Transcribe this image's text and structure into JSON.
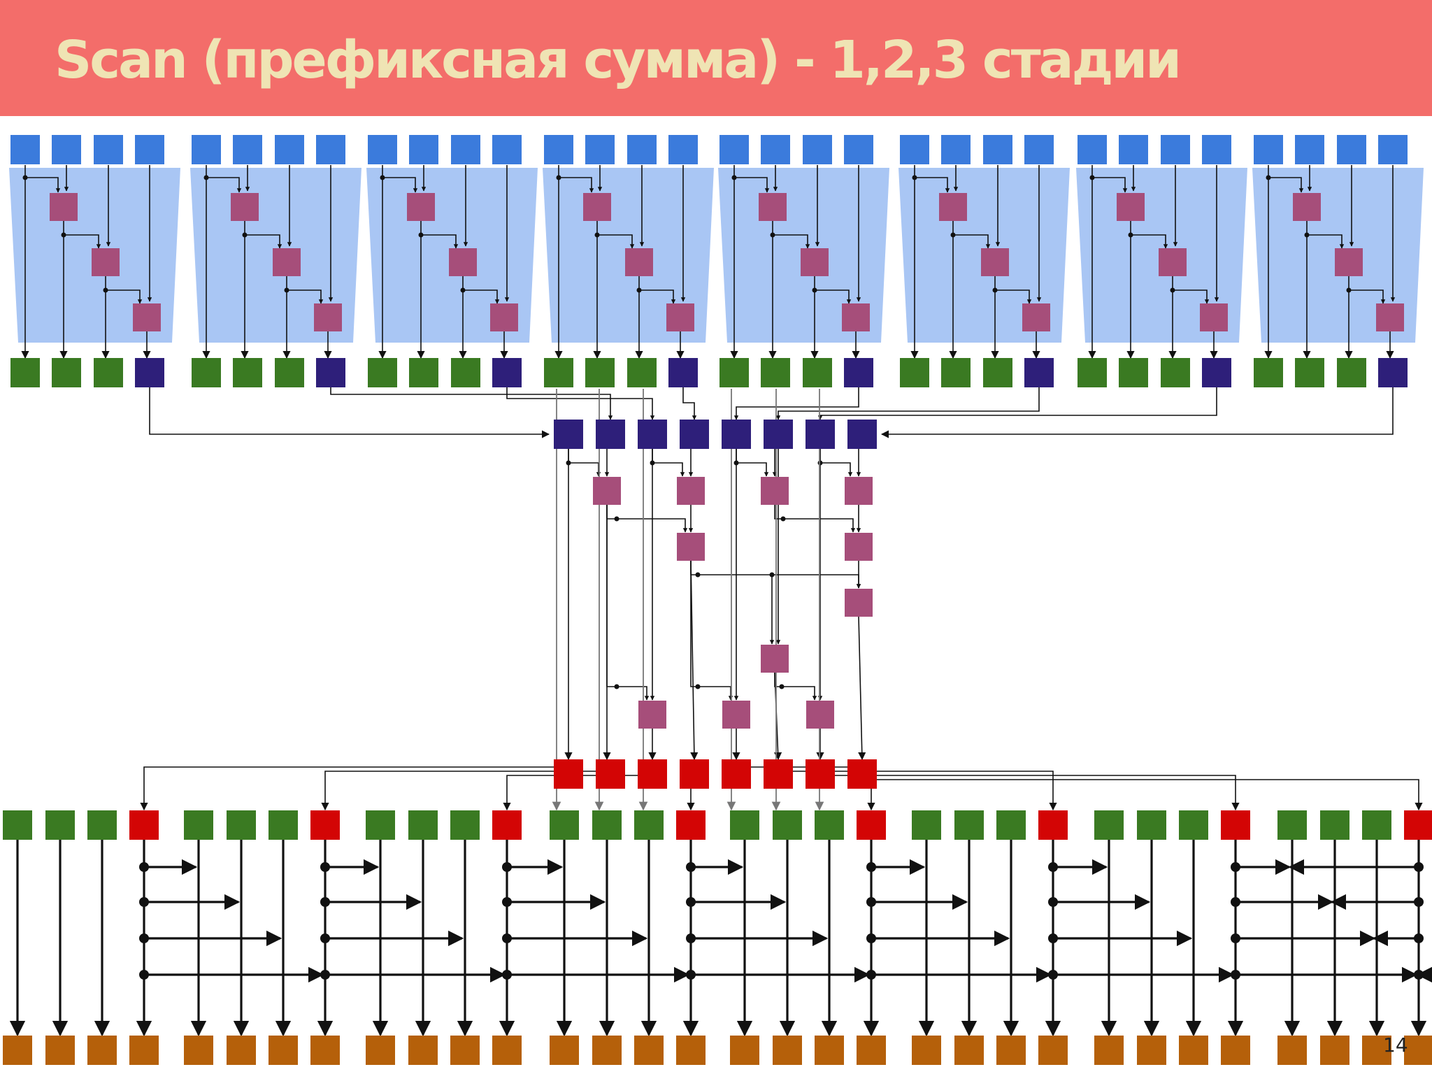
{
  "slide": {
    "title": "Scan (префиксная сумма) - 1,2,3 стадии",
    "page_number": "14"
  },
  "colors": {
    "title_bar": "#f36d6a",
    "title_text": "#efe4b4",
    "input_block": "#3b7bdc",
    "block_background": "#a9c6f4",
    "adder": "#a64e7a",
    "partial_sum": "#3a7a22",
    "block_total": "#2e1f7a",
    "carry_in": "#d30505",
    "output": "#b5600a",
    "arrow": "#111111"
  },
  "diagram": {
    "blocks": 8,
    "elements_per_block": 4,
    "icons": [
      "input-element",
      "adder-node",
      "partial-sum-element",
      "block-total-element",
      "carry-element",
      "output-element"
    ]
  }
}
